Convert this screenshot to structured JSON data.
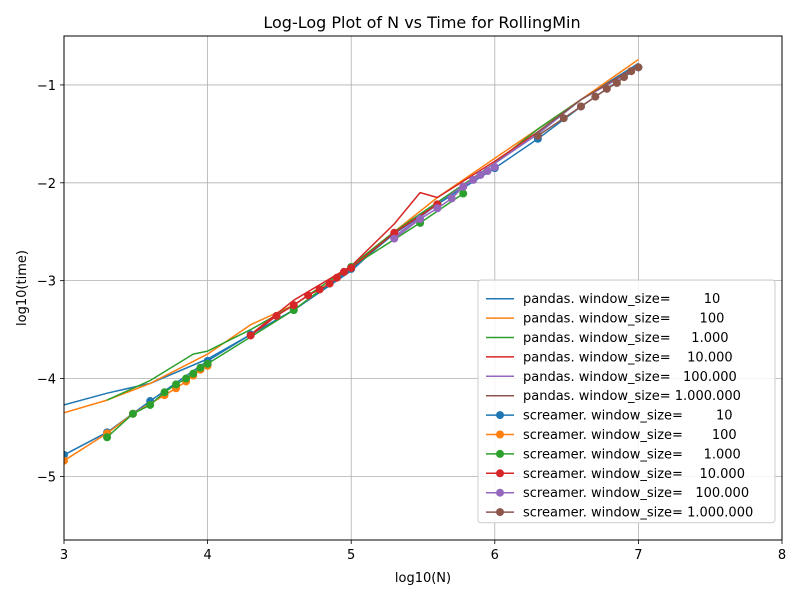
{
  "chart_data": {
    "type": "line",
    "title": "Log-Log Plot of N vs Time for RollingMin",
    "xlabel": "log10(N)",
    "ylabel": "log10(time)",
    "xlim": [
      3,
      8
    ],
    "ylim": [
      -5.65,
      -0.5
    ],
    "xticks": [
      3,
      4,
      5,
      6,
      7,
      8
    ],
    "xtick_labels": [
      "3",
      "4",
      "5",
      "6",
      "7",
      "8"
    ],
    "yticks": [
      -5,
      -4,
      -3,
      -2,
      -1
    ],
    "ytick_labels": [
      "−5",
      "−4",
      "−3",
      "−2",
      "−1"
    ],
    "grid": true,
    "legend_position": "lower right",
    "colors": [
      "#1f77b4",
      "#ff7f0e",
      "#2ca02c",
      "#d62728",
      "#9467bd",
      "#8c564b"
    ],
    "series": [
      {
        "name": "pandas. window_size=        10",
        "color": "#1f77b4",
        "marker": false,
        "x": [
          3.0,
          3.3,
          3.6,
          4.0,
          4.3,
          4.6,
          5.0,
          5.3,
          5.6,
          6.0,
          6.3,
          6.6,
          7.0
        ],
        "y": [
          -4.27,
          -4.15,
          -4.05,
          -3.8,
          -3.55,
          -3.3,
          -2.9,
          -2.5,
          -2.2,
          -1.8,
          -1.5,
          -1.15,
          -0.78
        ]
      },
      {
        "name": "pandas. window_size=       100",
        "color": "#ff7f0e",
        "marker": false,
        "x": [
          3.0,
          3.3,
          3.6,
          4.0,
          4.3,
          4.6,
          5.0,
          5.3,
          5.6,
          6.0,
          6.3,
          6.6,
          7.0
        ],
        "y": [
          -4.35,
          -4.22,
          -4.05,
          -3.75,
          -3.45,
          -3.25,
          -2.85,
          -2.5,
          -2.15,
          -1.75,
          -1.45,
          -1.15,
          -0.74
        ]
      },
      {
        "name": "pandas. window_size=     1.000",
        "color": "#2ca02c",
        "marker": false,
        "x": [
          3.3,
          3.6,
          3.9,
          4.0,
          4.3,
          4.6,
          5.0,
          5.3,
          5.6,
          6.0,
          6.3,
          6.6,
          7.0
        ],
        "y": [
          -4.22,
          -4.02,
          -3.75,
          -3.72,
          -3.5,
          -3.25,
          -2.85,
          -2.5,
          -2.2,
          -1.8,
          -1.45,
          -1.15,
          -0.8
        ]
      },
      {
        "name": "pandas. window_size=    10.000",
        "color": "#d62728",
        "marker": false,
        "x": [
          4.3,
          4.6,
          5.0,
          5.3,
          5.48,
          5.6,
          6.0,
          6.3,
          6.6,
          7.0
        ],
        "y": [
          -3.55,
          -3.2,
          -2.85,
          -2.42,
          -2.1,
          -2.15,
          -1.78,
          -1.48,
          -1.15,
          -0.8
        ]
      },
      {
        "name": "pandas. window_size=   100.000",
        "color": "#9467bd",
        "marker": false,
        "x": [
          5.3,
          5.6,
          6.0,
          6.3,
          6.6,
          7.0
        ],
        "y": [
          -2.55,
          -2.22,
          -1.8,
          -1.5,
          -1.15,
          -0.82
        ]
      },
      {
        "name": "pandas. window_size= 1.000.000",
        "color": "#8c564b",
        "marker": false,
        "x": [
          6.3,
          6.6,
          7.0
        ],
        "y": [
          -1.48,
          -1.15,
          -0.8
        ]
      },
      {
        "name": "screamer. window_size=        10",
        "color": "#1f77b4",
        "marker": true,
        "x": [
          3.0,
          3.3,
          3.6,
          4.0,
          4.3,
          4.6,
          5.0,
          5.3,
          5.6,
          6.0,
          6.3,
          6.6,
          7.0
        ],
        "y": [
          -4.78,
          -4.55,
          -4.23,
          -3.82,
          -3.55,
          -3.3,
          -2.88,
          -2.52,
          -2.22,
          -1.85,
          -1.55,
          -1.22,
          -0.82
        ]
      },
      {
        "name": "screamer. window_size=       100",
        "color": "#ff7f0e",
        "marker": true,
        "x": [
          3.0,
          3.3,
          3.48,
          3.7,
          3.78,
          3.85,
          3.9,
          3.95,
          4.0
        ],
        "y": [
          -4.84,
          -4.56,
          -4.36,
          -4.17,
          -4.1,
          -4.03,
          -3.97,
          -3.91,
          -3.87
        ]
      },
      {
        "name": "screamer. window_size=     1.000",
        "color": "#2ca02c",
        "marker": true,
        "x": [
          3.3,
          3.48,
          3.6,
          3.7,
          3.78,
          3.85,
          3.9,
          3.95,
          4.0,
          4.6,
          5.0,
          5.48,
          5.78
        ],
        "y": [
          -4.6,
          -4.36,
          -4.27,
          -4.14,
          -4.06,
          -4.0,
          -3.95,
          -3.89,
          -3.85,
          -3.3,
          -2.86,
          -2.41,
          -2.11
        ]
      },
      {
        "name": "screamer. window_size=    10.000",
        "color": "#d62728",
        "marker": true,
        "x": [
          4.3,
          4.48,
          4.6,
          4.7,
          4.78,
          4.85,
          4.9,
          4.95,
          5.0,
          5.3,
          5.6
        ],
        "y": [
          -3.56,
          -3.36,
          -3.25,
          -3.15,
          -3.09,
          -3.03,
          -2.97,
          -2.91,
          -2.87,
          -2.51,
          -2.22
        ]
      },
      {
        "name": "screamer. window_size=   100.000",
        "color": "#9467bd",
        "marker": true,
        "x": [
          5.3,
          5.48,
          5.6,
          5.7,
          5.78,
          5.85,
          5.9,
          5.95,
          6.0
        ],
        "y": [
          -2.57,
          -2.37,
          -2.26,
          -2.16,
          -2.04,
          -1.97,
          -1.92,
          -1.88,
          -1.84
        ]
      },
      {
        "name": "screamer. window_size= 1.000.000",
        "color": "#8c564b",
        "marker": true,
        "x": [
          6.3,
          6.48,
          6.6,
          6.7,
          6.78,
          6.85,
          6.9,
          6.95,
          7.0
        ],
        "y": [
          -1.52,
          -1.34,
          -1.22,
          -1.12,
          -1.04,
          -0.98,
          -0.92,
          -0.86,
          -0.82
        ]
      }
    ]
  }
}
